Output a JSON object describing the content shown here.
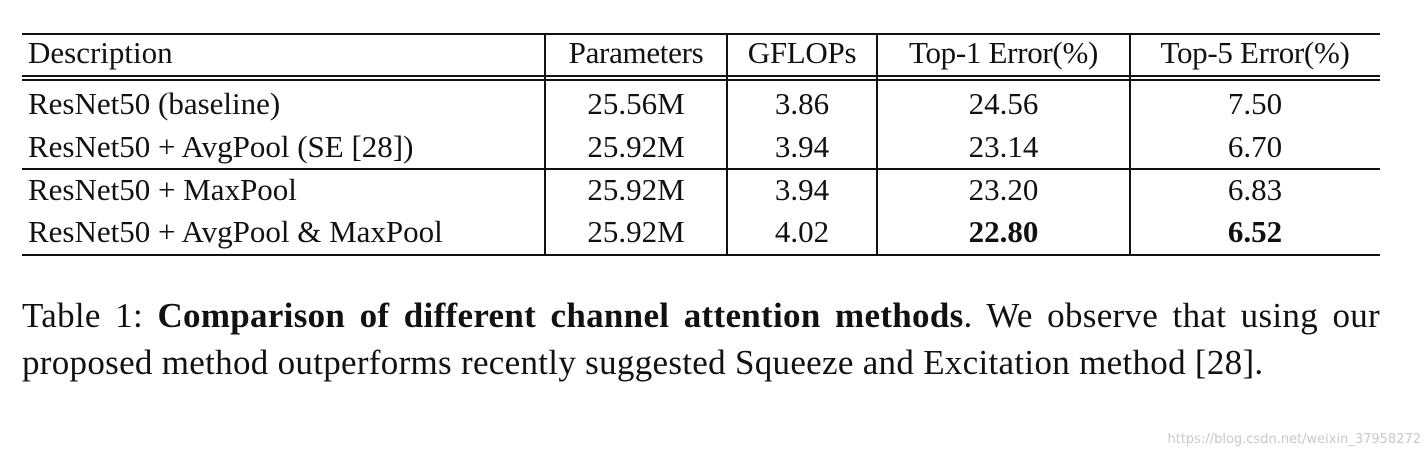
{
  "table": {
    "header": [
      "Description",
      "Parameters",
      "GFLOPs",
      "Top-1 Error(%)",
      "Top-5 Error(%)"
    ],
    "rows": [
      [
        "ResNet50 (baseline)",
        "25.56M",
        "3.86",
        "24.56",
        "7.50"
      ],
      [
        "ResNet50 + AvgPool (SE [28])",
        "25.92M",
        "3.94",
        "23.14",
        "6.70"
      ],
      [
        "ResNet50 + MaxPool",
        "25.92M",
        "3.94",
        "23.20",
        "6.83"
      ],
      [
        "ResNet50 + AvgPool & MaxPool",
        "25.92M",
        "4.02",
        "22.80",
        "6.52"
      ]
    ]
  },
  "caption": {
    "label": "Table 1:",
    "title": "Comparison of different channel attention methods",
    "text": ". We observe that using our proposed method outperforms recently suggested Squeeze and Excitation method [28]."
  },
  "watermark": "https://blog.csdn.net/weixin_37958272"
}
